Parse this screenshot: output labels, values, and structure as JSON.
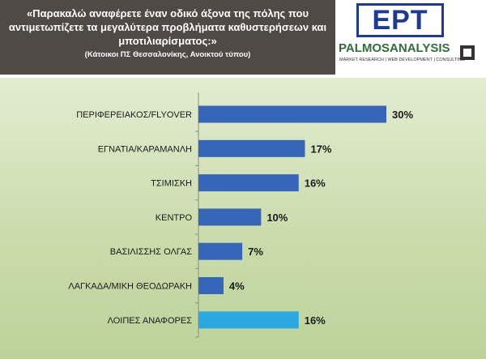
{
  "header": {
    "question": "«Παρακαλώ αναφέρετε έναν οδικό άξονα της πόλης που αντιμετωπίζετε τα μεγαλύτερα προβλήματα καθυστερήσεων και μποτιλιαρίσματος:»",
    "subtitle": "(Κάτοικοι ΠΣ Θεσσαλονίκης, Ανοικτού τύπου)"
  },
  "logos": {
    "ert": "ΕΡΤ",
    "palmos": "PALMOSANALYSIS",
    "palmos_sub": "MARKET RESEARCH | WEB DEVELOPMENT | CONSULTING"
  },
  "colors": {
    "bar": "#3566b8",
    "bar_highlight": "#29a9e0",
    "header_bg": "#4f4a45"
  },
  "chart_data": {
    "type": "bar",
    "orientation": "horizontal",
    "categories": [
      "ΠΕΡΙΦΕΡΕΙΑΚΟΣ/FLYOVER",
      "ΕΓΝΑΤΙΑ/ΚΑΡΑΜΑΝΛΗ",
      "ΤΣΙΜΙΣΚΗ",
      "ΚΕΝΤΡΟ",
      "ΒΑΣΙΛΙΣΣΗΣ ΟΛΓΑΣ",
      "ΛΑΓΚΑΔΑ/ΜΙΚΗ ΘΕΟΔΩΡΑΚΗ",
      "ΛΟΙΠΕΣ ΑΝΑΦΟΡΕΣ"
    ],
    "values": [
      30,
      17,
      16,
      10,
      7,
      4,
      16
    ],
    "value_labels": [
      "30%",
      "17%",
      "16%",
      "10%",
      "7%",
      "4%",
      "16%"
    ],
    "highlighted_index": 6,
    "xlim": [
      0,
      30
    ]
  }
}
